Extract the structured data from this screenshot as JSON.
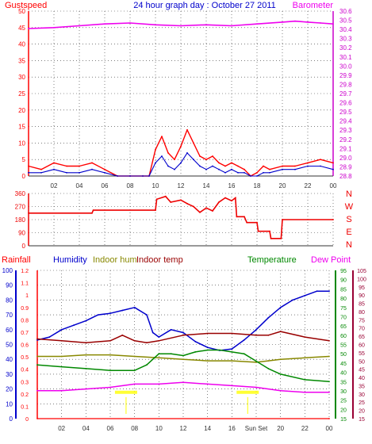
{
  "title": "24 hour graph day : October 27 2011",
  "colors": {
    "gust": "#ff0000",
    "wind": "#0000cc",
    "baro": "#ee00ee",
    "direction": "#ee0000",
    "rain": "#ff0000",
    "humidity": "#0000cc",
    "indoor_hum": "#888800",
    "indoor_temp": "#990000",
    "temperature": "#008800",
    "dewpoint": "#ee00ee",
    "baro_axis": "#cc00cc",
    "rain_axis": "#ff0000",
    "hum_axis": "#0000cc",
    "temp_axis": "#008800",
    "right_axis": "#990033",
    "sun_marker": "#ffff00",
    "grid": "#333333"
  },
  "chart_data": [
    {
      "type": "line",
      "id": "wind_baro",
      "title": "24 hour graph day : October 27 2011",
      "left_label": "Gustspeed",
      "right_label": "Barometer",
      "xlabels": [
        "02",
        "04",
        "06",
        "08",
        "10",
        "12",
        "14",
        "16",
        "18",
        "20",
        "22",
        "00"
      ],
      "xlim": [
        0,
        24
      ],
      "ylim_left": [
        0,
        50
      ],
      "yticks_left": [
        0,
        5,
        10,
        15,
        20,
        25,
        30,
        35,
        40,
        45,
        50
      ],
      "ylim_right": [
        28.8,
        30.6
      ],
      "yticks_right": [
        28.8,
        28.9,
        29,
        29.1,
        29.2,
        29.3,
        29.4,
        29.5,
        29.6,
        29.7,
        29.8,
        29.9,
        30,
        30.1,
        30.2,
        30.3,
        30.4,
        30.5,
        30.6
      ],
      "series": [
        {
          "name": "Barometer",
          "axis": "right",
          "x": [
            0,
            2,
            4,
            6,
            8,
            10,
            12,
            14,
            16,
            18,
            20,
            21,
            22,
            23,
            24
          ],
          "y": [
            30.41,
            30.42,
            30.44,
            30.46,
            30.47,
            30.45,
            30.44,
            30.45,
            30.44,
            30.46,
            30.48,
            30.49,
            30.48,
            30.47,
            30.46
          ]
        },
        {
          "name": "Gustspeed",
          "axis": "left",
          "x": [
            0,
            1,
            2,
            3,
            4,
            5,
            6,
            7,
            8,
            9,
            9.5,
            10,
            10.5,
            11,
            11.5,
            12,
            12.5,
            13,
            13.5,
            14,
            14.5,
            15,
            15.5,
            16,
            16.5,
            17,
            17.5,
            18,
            18.5,
            19,
            20,
            21,
            22,
            23,
            24
          ],
          "y": [
            3,
            2,
            4,
            3,
            3,
            4,
            2,
            0,
            0,
            0,
            0,
            8,
            12,
            7,
            5,
            9,
            14,
            10,
            6,
            5,
            6,
            4,
            3,
            4,
            3,
            2,
            0,
            1,
            3,
            2,
            3,
            3,
            4,
            5,
            4
          ]
        },
        {
          "name": "Windspeed",
          "axis": "left",
          "x": [
            0,
            1,
            2,
            3,
            4,
            5,
            6,
            7,
            8,
            9,
            9.5,
            10,
            10.5,
            11,
            11.5,
            12,
            12.5,
            13,
            13.5,
            14,
            14.5,
            15,
            15.5,
            16,
            16.5,
            17,
            17.5,
            18,
            18.5,
            19,
            20,
            21,
            22,
            23,
            24
          ],
          "y": [
            1,
            1,
            2,
            1,
            1,
            2,
            1,
            0,
            0,
            0,
            0,
            4,
            6,
            3,
            2,
            4,
            7,
            5,
            3,
            2,
            3,
            2,
            1,
            2,
            1,
            1,
            0,
            0,
            1,
            1,
            2,
            2,
            3,
            3,
            2
          ]
        }
      ]
    },
    {
      "type": "line",
      "id": "direction",
      "xlabels": [],
      "xlim": [
        0,
        24
      ],
      "ylim": [
        0,
        360
      ],
      "yticks": [
        0,
        90,
        180,
        270,
        360
      ],
      "right_labels": [
        "N",
        "W",
        "S",
        "E",
        "N"
      ],
      "series": [
        {
          "name": "Wind direction",
          "x": [
            0,
            5,
            5.1,
            10,
            10.1,
            10.8,
            11.2,
            12,
            12.5,
            13,
            13.5,
            14,
            14.5,
            15,
            15.5,
            16,
            16.3,
            16.4,
            17,
            17.2,
            18,
            18.1,
            19,
            19.1,
            19.9,
            20,
            24
          ],
          "y": [
            225,
            225,
            245,
            245,
            320,
            340,
            300,
            315,
            290,
            270,
            230,
            260,
            240,
            300,
            330,
            310,
            330,
            200,
            200,
            160,
            160,
            100,
            100,
            50,
            50,
            180,
            180
          ]
        }
      ]
    },
    {
      "type": "line",
      "id": "temp_hum",
      "legend": [
        "Rainfall",
        "Humidity",
        "Indoor hum",
        "Indoor temp",
        "Temperature",
        "Dew Point"
      ],
      "xlabels": [
        "02",
        "04",
        "06",
        "08",
        "10",
        "12",
        "14",
        "16",
        "Sun Set",
        "20",
        "22",
        "00"
      ],
      "xlim": [
        0,
        24
      ],
      "ylim_hum": [
        0,
        100
      ],
      "yticks_hum": [
        0,
        10,
        20,
        30,
        40,
        50,
        60,
        70,
        80,
        90,
        100
      ],
      "ylim_rain": [
        0,
        1.2
      ],
      "yticks_rain": [
        0,
        0.1,
        0.2,
        0.3,
        0.4,
        0.5,
        0.6,
        0.7,
        0.8,
        0.9,
        1,
        1.1,
        1.2
      ],
      "ylim_temp": [
        15,
        95
      ],
      "yticks_temp": [
        15,
        20,
        25,
        30,
        35,
        40,
        45,
        50,
        55,
        60,
        65,
        70,
        75,
        80,
        85,
        90,
        95
      ],
      "ylim_dew": [
        15,
        105
      ],
      "yticks_dew": [
        15,
        20,
        25,
        30,
        35,
        40,
        45,
        50,
        55,
        60,
        65,
        70,
        75,
        80,
        85,
        90,
        95,
        100,
        105
      ],
      "sun_markers": [
        7.3,
        17.3
      ],
      "series": [
        {
          "name": "Humidity",
          "axis": "hum",
          "x": [
            0,
            1,
            2,
            3,
            4,
            5,
            6,
            7,
            8,
            9,
            9.5,
            10,
            11,
            12,
            13,
            14,
            15,
            16,
            17,
            18,
            19,
            20,
            21,
            22,
            23,
            24
          ],
          "y": [
            53,
            55,
            60,
            63,
            66,
            70,
            71,
            73,
            75,
            70,
            58,
            55,
            60,
            58,
            52,
            48,
            46,
            47,
            53,
            60,
            68,
            75,
            80,
            83,
            86,
            86
          ]
        },
        {
          "name": "Indoor hum",
          "axis": "hum",
          "x": [
            0,
            2,
            4,
            6,
            8,
            10,
            12,
            14,
            16,
            18,
            19,
            20,
            22,
            24
          ],
          "y": [
            42,
            42,
            43,
            43,
            42,
            41,
            40,
            39,
            39,
            38,
            39,
            40,
            41,
            42
          ]
        },
        {
          "name": "Indoor temp",
          "axis": "temp",
          "x": [
            0,
            2,
            4,
            6,
            7,
            8,
            9,
            10,
            12,
            14,
            16,
            18,
            19,
            20,
            22,
            24
          ],
          "y": [
            58,
            57,
            56,
            57,
            60,
            57,
            56,
            57,
            60,
            61,
            61,
            60,
            60,
            62,
            59,
            57
          ]
        },
        {
          "name": "Temperature",
          "axis": "temp",
          "x": [
            0,
            2,
            4,
            6,
            8,
            9,
            10,
            11,
            12,
            13,
            14,
            15,
            16,
            17,
            18,
            19,
            20,
            22,
            24
          ],
          "y": [
            44,
            43,
            42,
            41,
            41,
            44,
            50,
            50,
            49,
            51,
            52,
            52,
            51,
            50,
            46,
            42,
            39,
            36,
            35
          ]
        },
        {
          "name": "Dew Point",
          "axis": "dew",
          "x": [
            0,
            2,
            4,
            6,
            8,
            10,
            12,
            14,
            16,
            18,
            20,
            22,
            24
          ],
          "y": [
            32,
            32,
            33,
            34,
            36,
            36,
            37,
            36,
            35,
            34,
            32,
            31,
            31
          ]
        },
        {
          "name": "Rainfall",
          "axis": "rain",
          "x": [
            0,
            24
          ],
          "y": [
            0,
            0
          ]
        }
      ]
    }
  ]
}
